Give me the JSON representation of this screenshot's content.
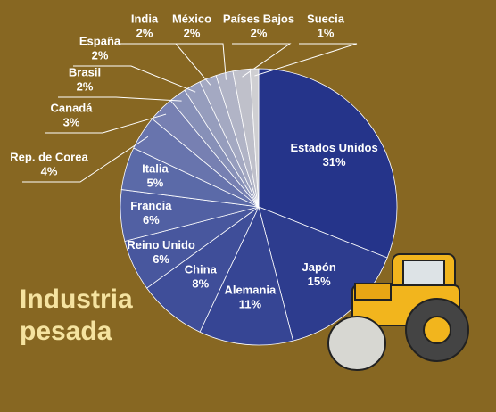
{
  "chart_data": {
    "type": "pie",
    "title": "Industria pesada",
    "categories": [
      "Estados Unidos",
      "Japón",
      "Alemania",
      "China",
      "Reino Unido",
      "Francia",
      "Italia",
      "Rep. de Corea",
      "Canadá",
      "Brasil",
      "España",
      "India",
      "México",
      "Países Bajos",
      "Suecia"
    ],
    "values": [
      31,
      15,
      11,
      8,
      6,
      6,
      5,
      4,
      3,
      2,
      2,
      2,
      2,
      2,
      1
    ],
    "value_labels": [
      "31%",
      "15%",
      "11%",
      "8%",
      "6%",
      "6%",
      "5%",
      "4%",
      "3%",
      "2%",
      "2%",
      "2%",
      "2%",
      "2%",
      "1%"
    ],
    "colors": [
      "#25348a",
      "#2d3c8e",
      "#364594",
      "#3f4e99",
      "#48579e",
      "#5160a3",
      "#5b6aa8",
      "#6874ad",
      "#7780b2",
      "#8790b8",
      "#969dbd",
      "#a4a9c2",
      "#b1b4c6",
      "#bfc0ca",
      "#cfcfd2"
    ]
  }
}
